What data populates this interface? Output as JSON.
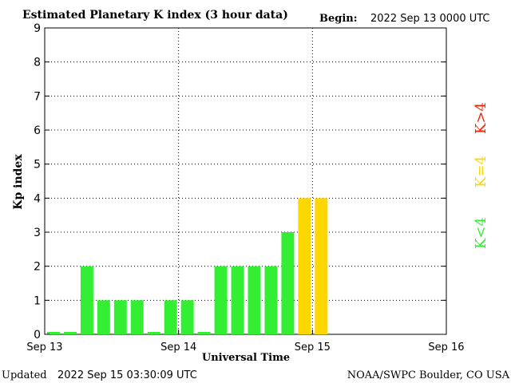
{
  "header": {
    "title": "Estimated Planetary K index (3 hour data)",
    "begin_label": "Begin:",
    "begin_value": "2022 Sep 13 0000 UTC"
  },
  "footer": {
    "updated_label": "Updated",
    "updated_value": "2022 Sep 15 03:30:09 UTC",
    "credit": "NOAA/SWPC Boulder, CO USA"
  },
  "legend": {
    "items": [
      {
        "label": "K<4",
        "color": "#33ee33"
      },
      {
        "label": "K=4",
        "color": "#ffd700"
      },
      {
        "label": "K>4",
        "color": "#ff2200"
      }
    ]
  },
  "chart_data": {
    "type": "bar",
    "title": "Estimated Planetary K index (3 hour data)",
    "xlabel": "Universal Time",
    "ylabel": "Kp index",
    "ylim": [
      0,
      9
    ],
    "yticks": [
      0,
      1,
      2,
      3,
      4,
      5,
      6,
      7,
      8,
      9
    ],
    "xticks": [
      "Sep 13",
      "Sep 14",
      "Sep 15",
      "Sep 16"
    ],
    "interval_hours": 3,
    "slots_total": 24,
    "values": [
      0,
      0,
      2,
      1,
      1,
      1,
      0,
      1,
      1,
      0,
      2,
      2,
      2,
      2,
      3,
      4,
      4
    ],
    "colors": {
      "below4": "#33ee33",
      "equal4": "#ffd700",
      "above4": "#ff2200"
    },
    "grid": true
  }
}
